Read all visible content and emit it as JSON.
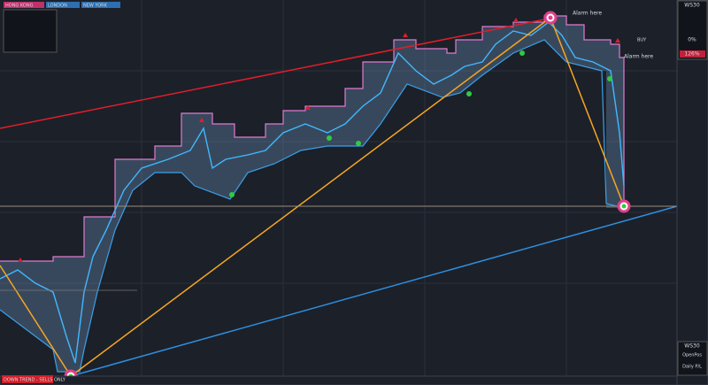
{
  "sessions": [
    "HONG KONG",
    "LONDON",
    "NEW YORK"
  ],
  "annotations": [
    "Alarm here",
    "Alarm here"
  ],
  "trend_banner": "DOWN TREND - SELLS ONLY",
  "top_panel": {
    "symbol": "WS30",
    "signal": "BUY",
    "score": "126%",
    "risk": "0%"
  },
  "bottom_panel": {
    "symbol": "WS30",
    "rows": [
      "OpenPos",
      "Daily P/L"
    ]
  }
}
